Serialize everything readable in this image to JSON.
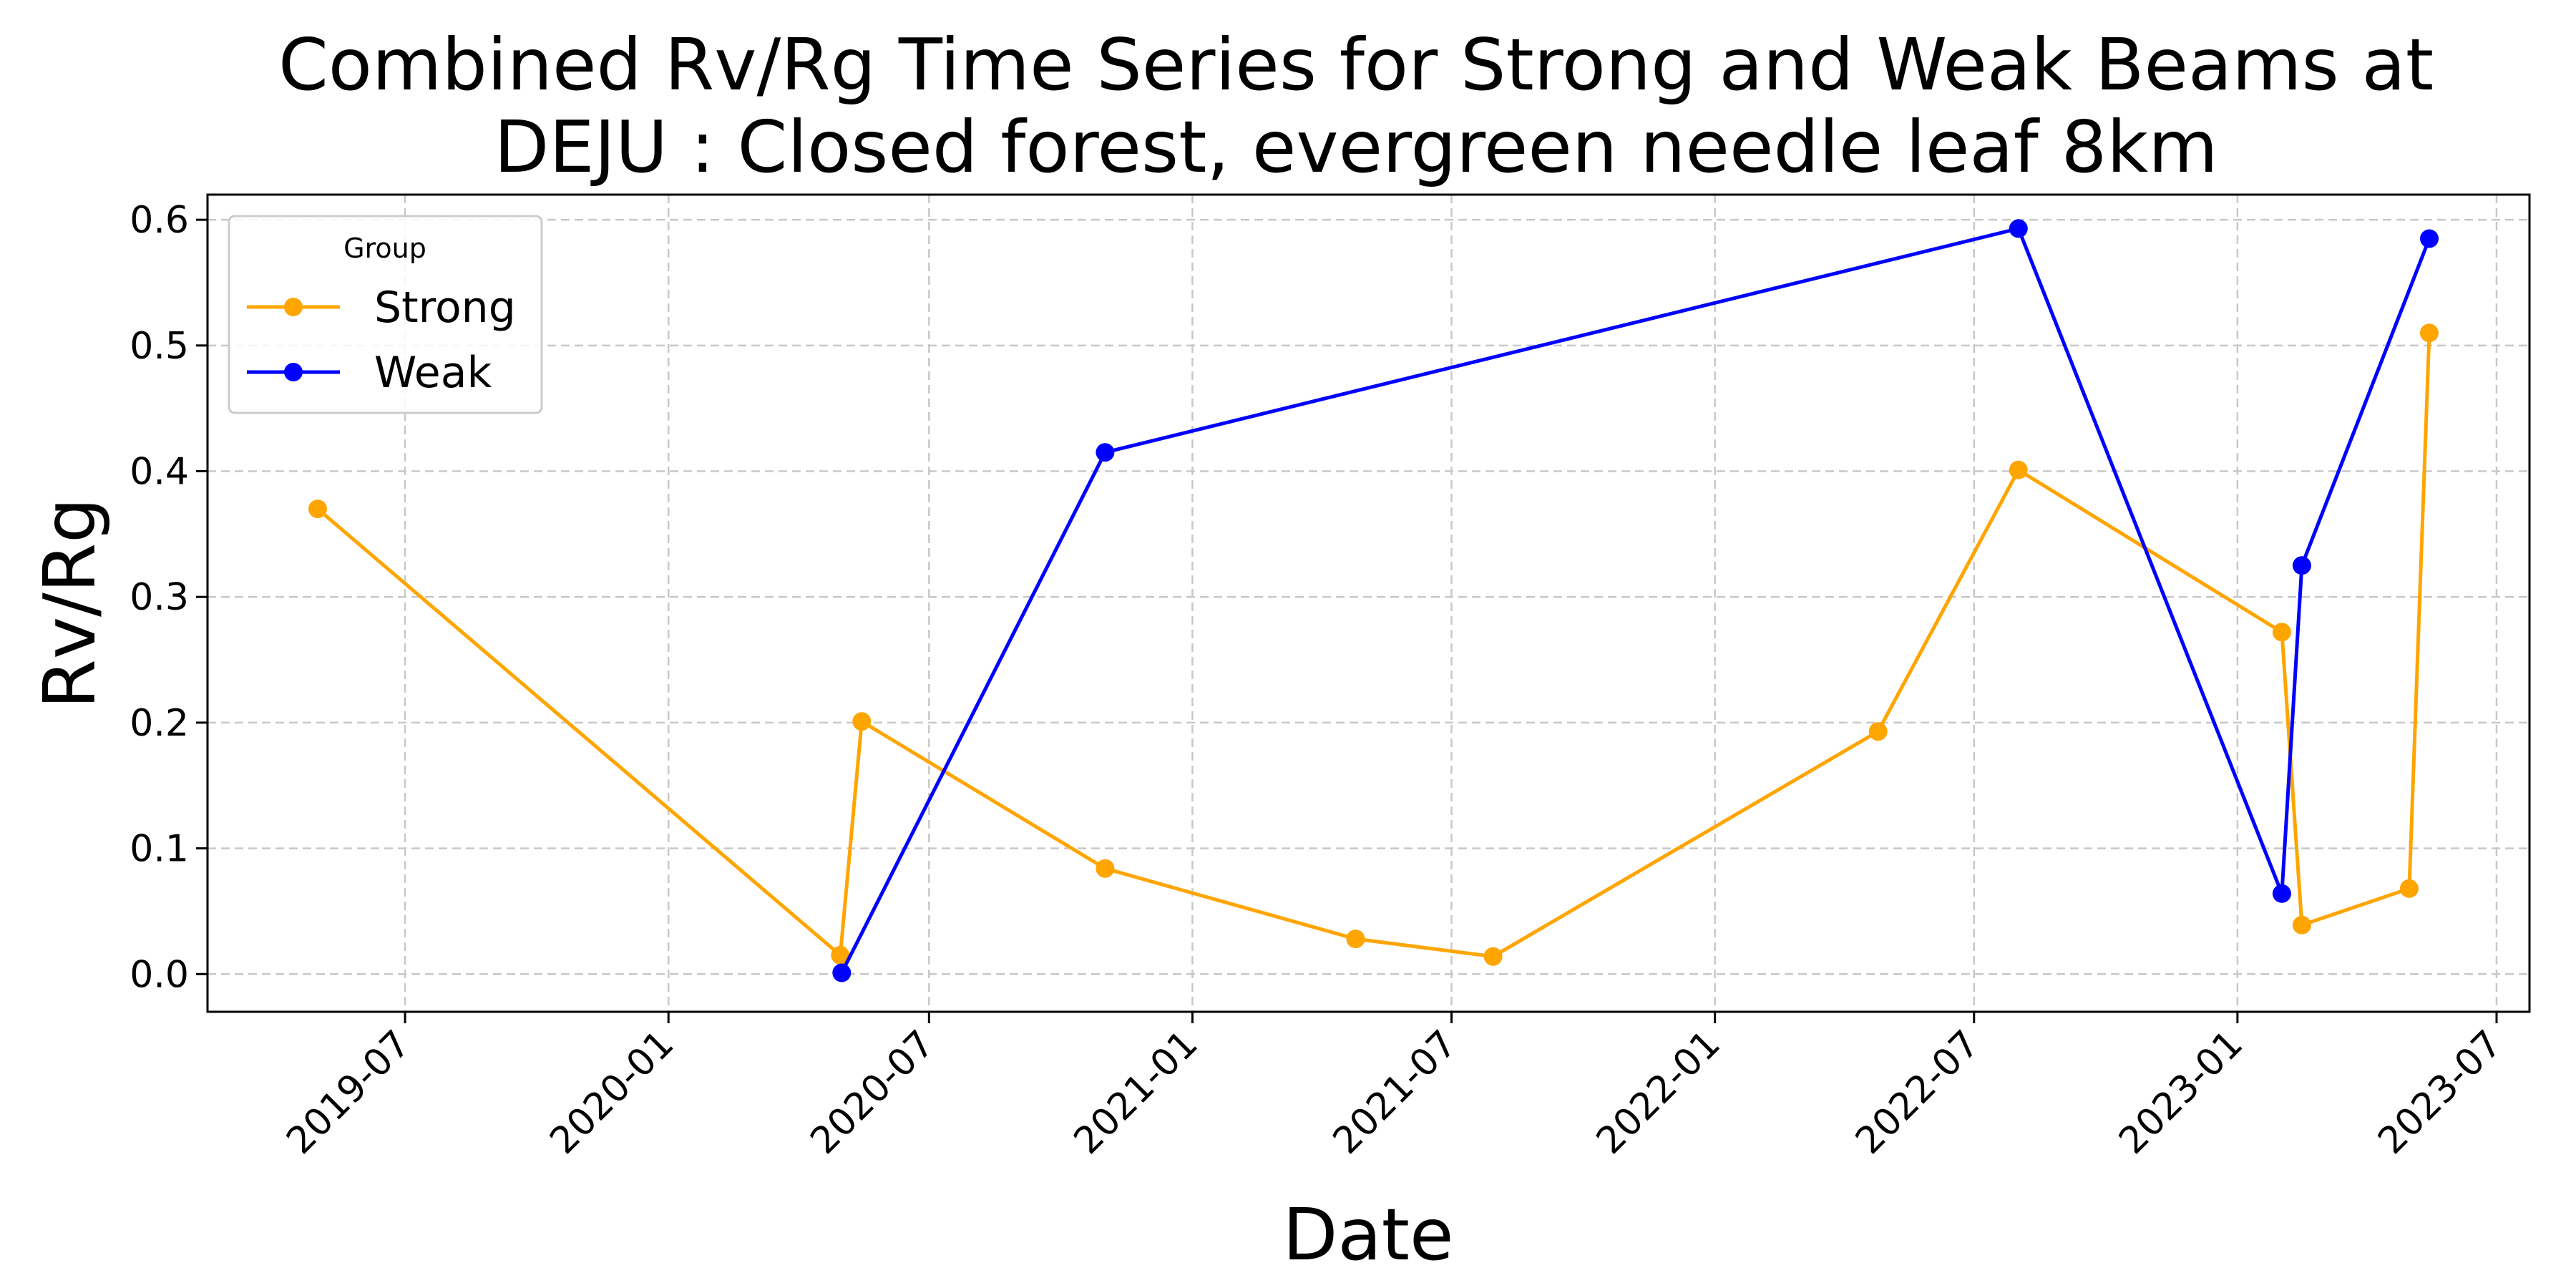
{
  "chart_data": {
    "type": "line",
    "title_line1": "Combined Rv/Rg Time Series for Strong and Weak Beams at",
    "title_line2": "DEJU : Closed forest, evergreen needle leaf 8km",
    "xlabel": "Date",
    "ylabel": "Rv/Rg",
    "x_ticks": [
      "2019-07",
      "2020-01",
      "2020-07",
      "2021-01",
      "2021-07",
      "2022-01",
      "2022-07",
      "2023-01",
      "2023-07"
    ],
    "y_ticks": [
      "0.0",
      "0.1",
      "0.2",
      "0.3",
      "0.4",
      "0.5",
      "0.6"
    ],
    "xlim": [
      "2019-02-13",
      "2023-07-24"
    ],
    "ylim": [
      -0.03,
      0.62
    ],
    "grid": true,
    "legend": {
      "title": "Group",
      "placement": "top-left"
    },
    "series": [
      {
        "name": "Strong",
        "color": "#FFA500",
        "points": [
          [
            "2019-05-01",
            0.37
          ],
          [
            "2020-04-30",
            0.015
          ],
          [
            "2020-05-15",
            0.201
          ],
          [
            "2020-11-01",
            0.084
          ],
          [
            "2021-04-25",
            0.028
          ],
          [
            "2021-07-30",
            0.014
          ],
          [
            "2022-04-25",
            0.193
          ],
          [
            "2022-08-01",
            0.401
          ],
          [
            "2023-02-01",
            0.272
          ],
          [
            "2023-02-15",
            0.039
          ],
          [
            "2023-05-01",
            0.068
          ],
          [
            "2023-05-15",
            0.51
          ]
        ]
      },
      {
        "name": "Weak",
        "color": "#0000FF",
        "points": [
          [
            "2020-05-01",
            0.001
          ],
          [
            "2020-11-01",
            0.415
          ],
          [
            "2022-08-01",
            0.593
          ],
          [
            "2023-02-01",
            0.064
          ],
          [
            "2023-02-15",
            0.325
          ],
          [
            "2023-05-15",
            0.585
          ]
        ]
      }
    ]
  }
}
